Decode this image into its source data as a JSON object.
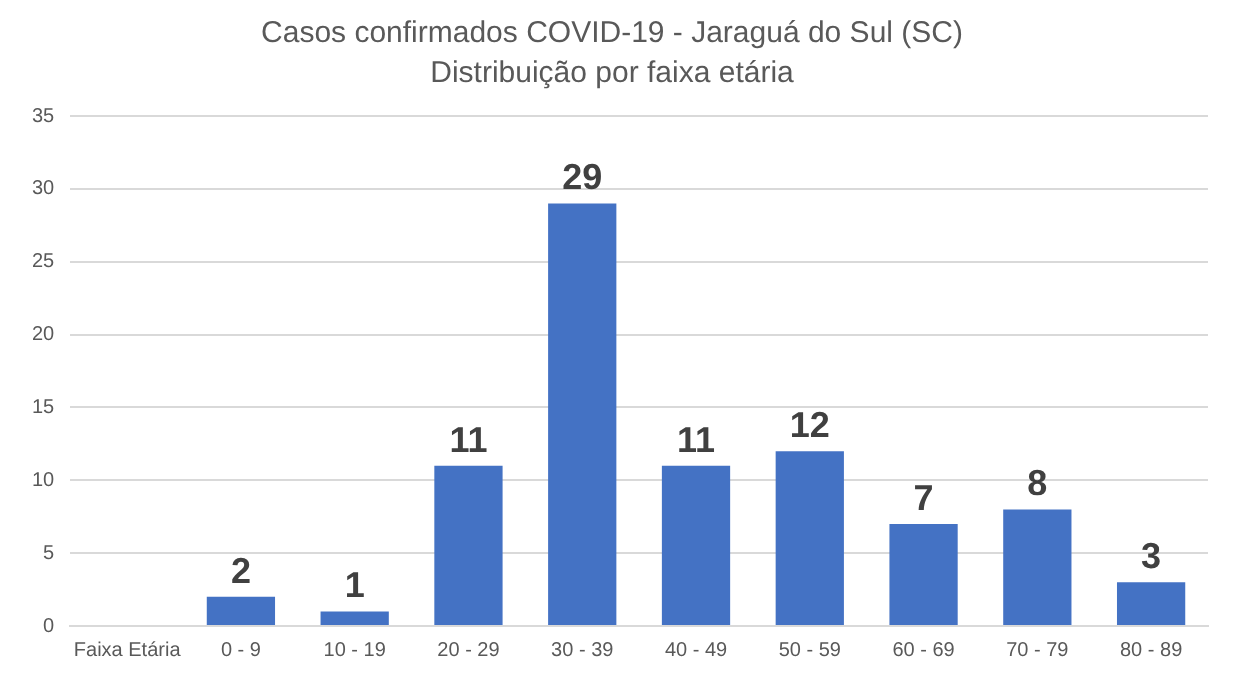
{
  "chart_data": {
    "type": "bar",
    "title": "Casos confirmados COVID-19 - Jaraguá do Sul (SC)",
    "subtitle": "Distribuição por faixa etária",
    "categories": [
      "Faixa Etária",
      "0 - 9",
      "10 - 19",
      "20 - 29",
      "30 - 39",
      "40 - 49",
      "50 - 59",
      "60 - 69",
      "70 - 79",
      "80 - 89"
    ],
    "values": [
      null,
      2,
      1,
      11,
      29,
      11,
      12,
      7,
      8,
      3
    ],
    "color": "#4472c4",
    "ylim": [
      0,
      35
    ],
    "yticks": [
      0,
      5,
      10,
      15,
      20,
      25,
      30,
      35
    ],
    "grid": "y",
    "data_labels": true,
    "legend": false
  }
}
